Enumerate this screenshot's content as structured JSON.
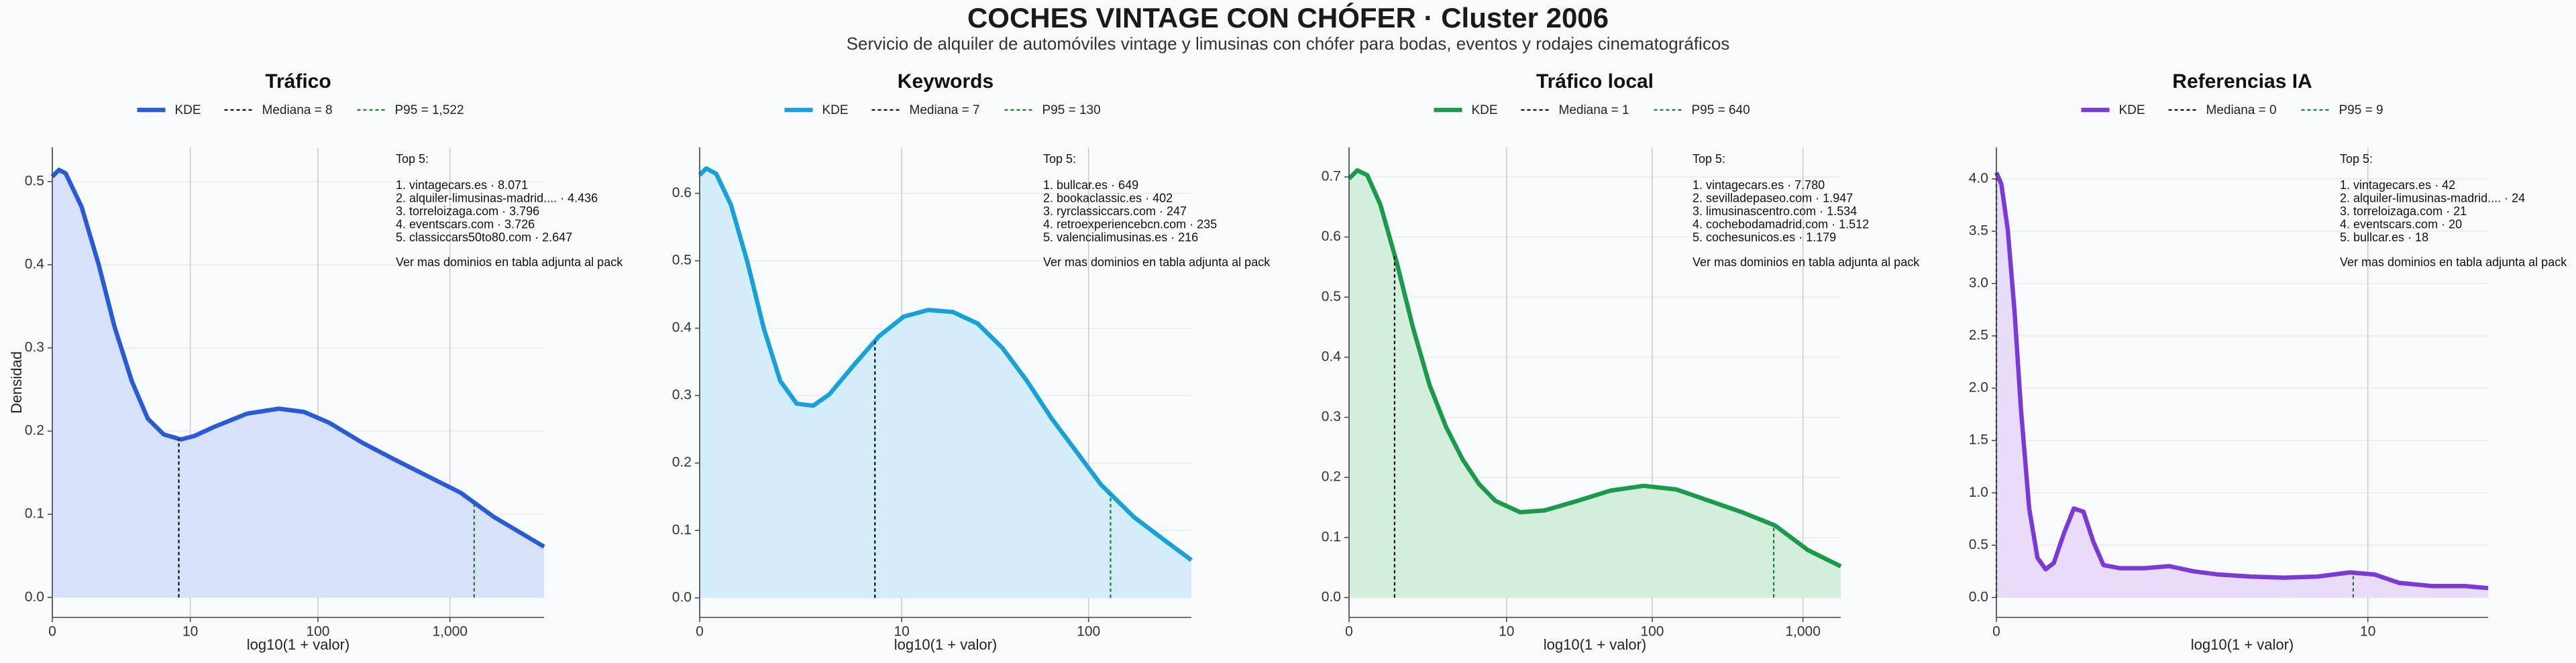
{
  "title": "COCHES VINTAGE CON CHÓFER · Cluster 2006",
  "subtitle": "Servicio de alquiler de automóviles vintage y limusinas con chófer para bodas, eventos y rodajes cinematográficos",
  "chart_data": [
    {
      "type": "area",
      "title": "Tráfico",
      "x_label": "log10(1 + valor)",
      "y_label": "Densidad",
      "x": [
        0,
        0.05,
        0.1,
        0.22,
        0.35,
        0.47,
        0.6,
        0.72,
        0.84,
        0.97,
        1.07,
        1.22,
        1.47,
        1.71,
        1.9,
        2.09,
        2.34,
        2.58,
        2.83,
        3.08,
        3.33,
        3.71
      ],
      "series": [
        {
          "name": "KDE",
          "color": "#2a5bd7",
          "fill_color": "#d7e1fa",
          "values": [
            0.506,
            0.514,
            0.51,
            0.47,
            0.4,
            0.325,
            0.26,
            0.215,
            0.196,
            0.19,
            0.194,
            0.205,
            0.221,
            0.227,
            0.223,
            0.21,
            0.186,
            0.166,
            0.146,
            0.126,
            0.097,
            0.061
          ]
        }
      ],
      "median": {
        "name": "Mediana = 8",
        "color": "#111111",
        "value": 8
      },
      "p95": {
        "name": "P95 = 1,522",
        "color": "#1f7a2a",
        "value": 1522
      },
      "xlim": [
        0,
        3.71
      ],
      "xticks": [
        0,
        {
          "value": 1.041,
          "label": "10"
        },
        {
          "value": 2.004,
          "label": "100"
        },
        {
          "value": 3.0,
          "label": "1,000"
        }
      ],
      "ylim": [
        -0.024,
        0.541
      ],
      "yticks": [
        {
          "value": 0,
          "label": "0.0"
        },
        0.1,
        0.2,
        0.3,
        0.4,
        0.5
      ],
      "grid": true,
      "annotation": {
        "title": "Top 5:",
        "items": [
          "1. vintagecars.es · 8.071",
          "2. alquiler-limusinas-madrid.... · 4.436",
          "3. torreloizaga.com · 3.796",
          "4. eventscars.com · 3.726",
          "5. classiccars50to80.com · 2.647"
        ],
        "note": "Ver mas dominios en tabla adjunta al pack"
      }
    },
    {
      "type": "area",
      "title": "Keywords",
      "x_label": "log10(1 + valor)",
      "x": [
        0,
        0.034,
        0.085,
        0.161,
        0.246,
        0.33,
        0.415,
        0.5,
        0.585,
        0.669,
        0.797,
        0.924,
        1.051,
        1.178,
        1.305,
        1.432,
        1.559,
        1.686,
        1.814,
        1.941,
        2.068,
        2.237,
        2.407,
        2.534
      ],
      "series": [
        {
          "name": "KDE",
          "color": "#18a0d8",
          "fill_color": "#d3eefa",
          "values": [
            0.627,
            0.637,
            0.629,
            0.583,
            0.498,
            0.4,
            0.322,
            0.288,
            0.285,
            0.302,
            0.346,
            0.388,
            0.417,
            0.427,
            0.424,
            0.407,
            0.371,
            0.322,
            0.266,
            0.217,
            0.168,
            0.12,
            0.083,
            0.056
          ]
        }
      ],
      "median": {
        "name": "Mediana = 7",
        "color": "#111111",
        "value": 7
      },
      "p95": {
        "name": "P95 = 130",
        "color": "#1f7a2a",
        "value": 130
      },
      "xlim": [
        0,
        2.534
      ],
      "xticks": [
        0,
        {
          "value": 1.041,
          "label": "10"
        },
        {
          "value": 2.004,
          "label": "100"
        }
      ],
      "ylim": [
        -0.029,
        0.668
      ],
      "yticks": [
        {
          "value": 0,
          "label": "0.0"
        },
        0.1,
        0.2,
        0.3,
        0.4,
        0.5,
        0.6
      ],
      "grid": true,
      "annotation": {
        "title": "Top 5:",
        "items": [
          "1. bullcar.es · 649",
          "2. bookaclassic.es · 402",
          "3. ryrclassiccars.com · 247",
          "4. retroexperiencebcn.com · 235",
          "5. valencialimusinas.es · 216"
        ],
        "note": "Ver mas dominios en tabla adjunta al pack"
      }
    },
    {
      "type": "area",
      "title": "Tráfico local",
      "x_label": "log10(1 + valor)",
      "x": [
        0,
        0.054,
        0.12,
        0.207,
        0.315,
        0.424,
        0.533,
        0.641,
        0.75,
        0.859,
        0.967,
        1.13,
        1.293,
        1.51,
        1.728,
        1.946,
        2.163,
        2.38,
        2.598,
        2.815,
        3.033,
        3.25
      ],
      "series": [
        {
          "name": "KDE",
          "color": "#1a9a4a",
          "fill_color": "#d4eedc",
          "values": [
            0.697,
            0.711,
            0.703,
            0.654,
            0.558,
            0.448,
            0.353,
            0.284,
            0.23,
            0.189,
            0.161,
            0.142,
            0.145,
            0.161,
            0.178,
            0.186,
            0.18,
            0.161,
            0.142,
            0.12,
            0.079,
            0.052
          ]
        }
      ],
      "median": {
        "name": "Mediana = 1",
        "color": "#111111",
        "value": 1
      },
      "p95": {
        "name": "P95 = 640",
        "color": "#1f7a2a",
        "value": 640
      },
      "xlim": [
        0,
        3.25
      ],
      "xticks": [
        0,
        {
          "value": 1.041,
          "label": "10"
        },
        {
          "value": 2.004,
          "label": "100"
        },
        {
          "value": 3.0,
          "label": "1,000"
        }
      ],
      "ylim": [
        -0.033,
        0.749
      ],
      "yticks": [
        {
          "value": 0,
          "label": "0.0"
        },
        0.1,
        0.2,
        0.3,
        0.4,
        0.5,
        0.6,
        0.7
      ],
      "grid": true,
      "annotation": {
        "title": "Top 5:",
        "items": [
          "1. vintagecars.es · 7.780",
          "2. sevilladepaseo.com · 1.947",
          "3. limusinascentro.com · 1.534",
          "4. cochebodamadrid.com · 1.512",
          "5. cochesunicos.es · 1.179"
        ],
        "note": "Ver mas dominios en tabla adjunta al pack"
      }
    },
    {
      "type": "area",
      "title": "Referencias IA",
      "x_label": "log10(1 + valor)",
      "x": [
        0,
        0.014,
        0.032,
        0.051,
        0.069,
        0.092,
        0.115,
        0.138,
        0.161,
        0.189,
        0.217,
        0.244,
        0.272,
        0.3,
        0.346,
        0.415,
        0.484,
        0.553,
        0.622,
        0.714,
        0.806,
        0.899,
        0.991,
        1.06,
        1.129,
        1.221,
        1.313,
        1.378
      ],
      "series": [
        {
          "name": "KDE",
          "color": "#7a3ad6",
          "fill_color": "#e8dcf8",
          "values": [
            4.06,
            3.95,
            3.51,
            2.73,
            1.79,
            0.85,
            0.38,
            0.27,
            0.33,
            0.61,
            0.85,
            0.82,
            0.53,
            0.31,
            0.28,
            0.28,
            0.3,
            0.25,
            0.22,
            0.2,
            0.19,
            0.2,
            0.24,
            0.22,
            0.14,
            0.11,
            0.11,
            0.09
          ]
        }
      ],
      "median": {
        "name": "Mediana = 0",
        "color": "#111111",
        "value": 0
      },
      "p95": {
        "name": "P95 = 9",
        "color": "#1f7a2a",
        "value": 9
      },
      "xlim": [
        0,
        1.378
      ],
      "xticks": [
        0,
        {
          "value": 1.041,
          "label": "10"
        }
      ],
      "ylim": [
        -0.19,
        4.3
      ],
      "yticks": [
        {
          "value": 0,
          "label": "0.0"
        },
        0.5,
        {
          "value": 1,
          "label": "1.0"
        },
        1.5,
        {
          "value": 2,
          "label": "2.0"
        },
        2.5,
        {
          "value": 3,
          "label": "3.0"
        },
        3.5,
        {
          "value": 4,
          "label": "4.0"
        }
      ],
      "grid": true,
      "annotation": {
        "title": "Top 5:",
        "items": [
          "1. vintagecars.es · 42",
          "2. alquiler-limusinas-madrid.... · 24",
          "3. torreloizaga.com · 21",
          "4. eventscars.com · 20",
          "5. bullcar.es · 18"
        ],
        "note": "Ver mas dominios en tabla adjunta al pack"
      }
    }
  ]
}
